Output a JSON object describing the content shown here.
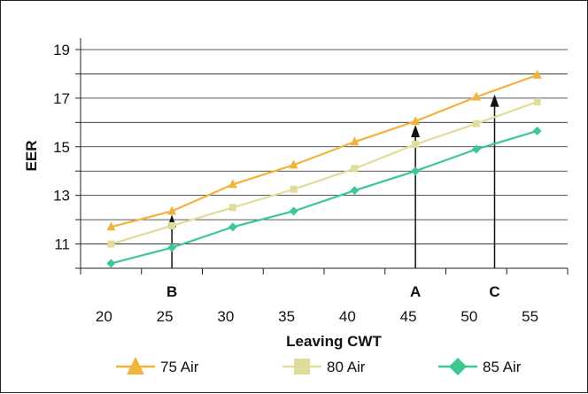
{
  "chart_data": {
    "type": "line",
    "xlabel": "Leaving CWT",
    "ylabel": "EER",
    "x": [
      20,
      25,
      30,
      35,
      40,
      45,
      50,
      55
    ],
    "x_ticks": [
      "20",
      "25",
      "30",
      "35",
      "40",
      "45",
      "50",
      "55"
    ],
    "y_ticks": [
      "11",
      "13",
      "15",
      "17",
      "19"
    ],
    "ylim": [
      10,
      19.4
    ],
    "grid": "horizontal",
    "legend_position": "bottom",
    "series": [
      {
        "name": "75 Air",
        "color": "#F0B43C",
        "marker": "triangle",
        "values": [
          11.7,
          12.35,
          13.45,
          14.25,
          15.2,
          16.05,
          17.05,
          17.95
        ]
      },
      {
        "name": "80 Air",
        "color": "#E2DC9C",
        "marker": "square",
        "values": [
          11.0,
          11.75,
          12.5,
          13.25,
          14.1,
          15.1,
          15.95,
          16.85
        ]
      },
      {
        "name": "85 Air",
        "color": "#3CC890",
        "marker": "diamond",
        "values": [
          10.2,
          10.85,
          11.7,
          12.35,
          13.2,
          14.0,
          14.9,
          15.65
        ]
      }
    ],
    "annotations": [
      {
        "label": "B",
        "x": 25,
        "y_from": 10.85,
        "y_to": 12.35
      },
      {
        "label": "A",
        "x": 45,
        "y_from": 14.0,
        "y_to": 16.05
      },
      {
        "label": "C",
        "x": 51.5,
        "y_from": 15.1,
        "y_to": 17.3
      }
    ]
  }
}
